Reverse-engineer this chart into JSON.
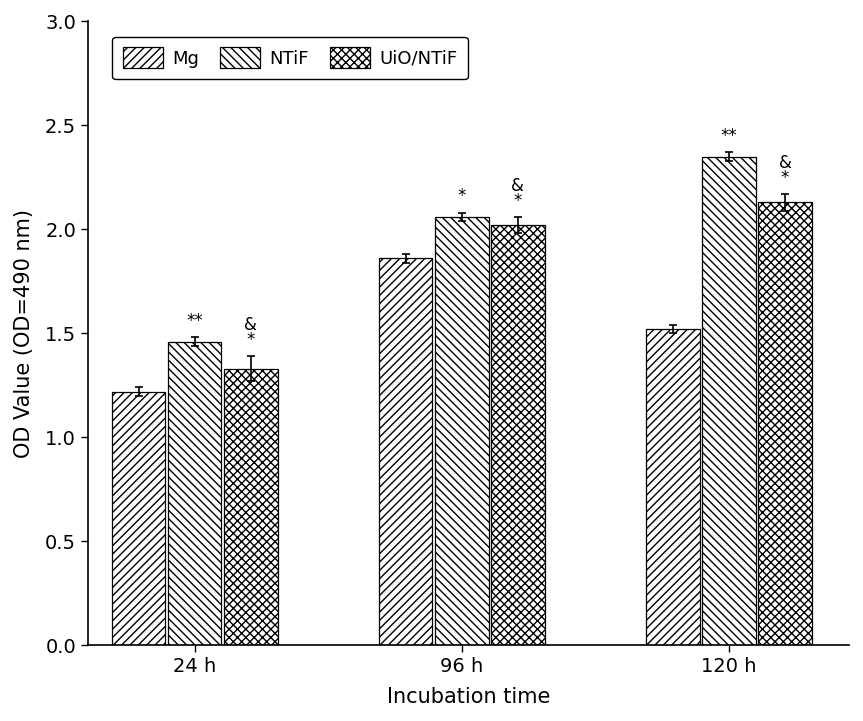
{
  "groups": [
    "24 h",
    "96 h",
    "120 h"
  ],
  "series": [
    "Mg",
    "NTiF",
    "UiO/NTiF"
  ],
  "values": [
    [
      1.22,
      1.46,
      1.33
    ],
    [
      1.86,
      2.06,
      2.02
    ],
    [
      1.52,
      2.35,
      2.13
    ]
  ],
  "errors": [
    [
      0.02,
      0.02,
      0.06
    ],
    [
      0.02,
      0.02,
      0.04
    ],
    [
      0.02,
      0.02,
      0.04
    ]
  ],
  "ylabel": "OD Value (OD=490 nm)",
  "xlabel": "Incubation time",
  "ylim": [
    0.0,
    3.0
  ],
  "yticks": [
    0.0,
    0.5,
    1.0,
    1.5,
    2.0,
    2.5,
    3.0
  ],
  "bar_width": 0.2,
  "group_positions": [
    1.0,
    2.0,
    3.0
  ],
  "hatch_patterns": [
    "////",
    "\\\\\\\\",
    "xxxx"
  ],
  "bar_facecolor": "#ffffff",
  "edge_color": "#000000",
  "error_color": "#000000",
  "background_color": "#ffffff",
  "label_fontsize": 15,
  "tick_fontsize": 14,
  "legend_fontsize": 13,
  "annot_fontsize": 12
}
